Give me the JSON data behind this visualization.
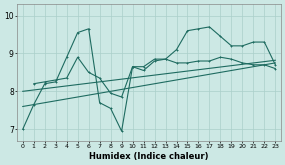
{
  "xlabel": "Humidex (Indice chaleur)",
  "bg_color": "#cce8e4",
  "line_color": "#1e6b60",
  "grid_color": "#aacfca",
  "xlim": [
    -0.5,
    23.5
  ],
  "ylim": [
    6.7,
    10.3
  ],
  "yticks": [
    7,
    8,
    9,
    10
  ],
  "xticks": [
    0,
    1,
    2,
    3,
    4,
    5,
    6,
    7,
    8,
    9,
    10,
    11,
    12,
    13,
    14,
    15,
    16,
    17,
    18,
    19,
    20,
    21,
    22,
    23
  ],
  "line1_x": [
    0,
    1,
    2,
    3,
    4,
    5,
    6,
    7,
    8,
    9,
    10,
    11,
    12,
    13,
    14,
    15,
    16,
    17,
    18,
    19,
    20,
    21,
    22,
    23
  ],
  "line1_y": [
    7.0,
    7.65,
    8.2,
    8.25,
    8.9,
    9.55,
    9.65,
    7.7,
    7.55,
    6.95,
    8.65,
    8.55,
    8.8,
    8.85,
    8.75,
    8.75,
    8.8,
    8.8,
    8.9,
    8.85,
    8.75,
    8.7,
    8.7,
    8.6
  ],
  "line2_x": [
    1,
    2,
    3,
    4,
    5,
    6,
    7,
    8,
    9,
    10,
    11,
    12,
    13,
    14,
    15,
    16,
    17,
    18,
    19,
    20,
    21,
    22,
    23
  ],
  "line2_y": [
    8.2,
    8.25,
    8.3,
    8.35,
    8.9,
    8.5,
    8.35,
    7.95,
    7.85,
    8.65,
    8.65,
    8.85,
    8.85,
    9.1,
    9.6,
    9.65,
    9.7,
    9.45,
    9.2,
    9.2,
    9.3,
    9.3,
    8.7
  ],
  "trend1_x": [
    0,
    23
  ],
  "trend1_y": [
    7.6,
    8.75
  ],
  "trend2_x": [
    0,
    23
  ],
  "trend2_y": [
    8.0,
    8.82
  ]
}
